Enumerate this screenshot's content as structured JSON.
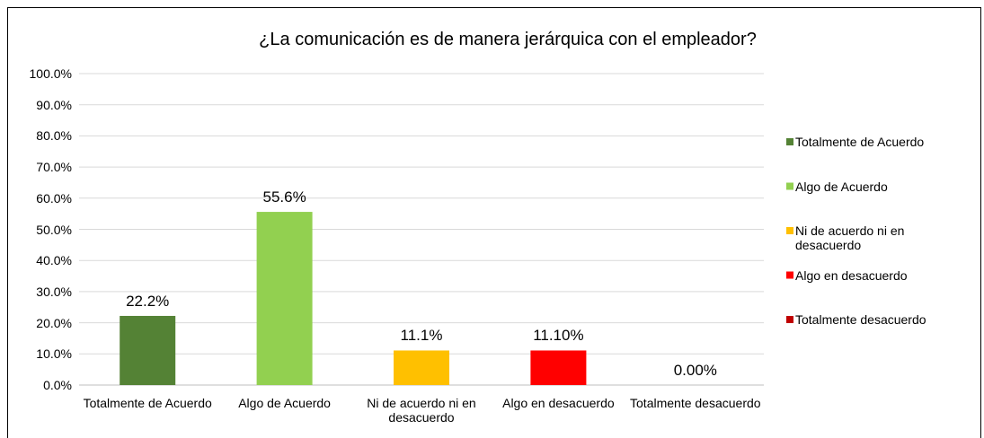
{
  "chart_data": {
    "type": "bar",
    "title": "¿La comunicación es de manera  jerárquica con el empleador?",
    "categories": [
      "Totalmente de Acuerdo",
      "Algo de Acuerdo",
      "Ni de acuerdo ni en desacuerdo",
      "Algo en desacuerdo",
      "Totalmente desacuerdo"
    ],
    "values": [
      22.2,
      55.6,
      11.1,
      11.1,
      0
    ],
    "value_labels": [
      "22.2%",
      "55.6%",
      "11.1%",
      "11.10%",
      "0.00%"
    ],
    "colors": [
      "#548235",
      "#92d050",
      "#ffc000",
      "#ff0000",
      "#c00000"
    ],
    "ylim": [
      0,
      100
    ],
    "yticks": [
      {
        "value": 0,
        "label": "0.0%"
      },
      {
        "value": 10,
        "label": "10.0%"
      },
      {
        "value": 20,
        "label": "20.0%"
      },
      {
        "value": 30,
        "label": "30.0%"
      },
      {
        "value": 40,
        "label": "40.0%"
      },
      {
        "value": 50,
        "label": "50.0%"
      },
      {
        "value": 60,
        "label": "60.0%"
      },
      {
        "value": 70,
        "label": "70.0%"
      },
      {
        "value": 80,
        "label": "80.0%"
      },
      {
        "value": 90,
        "label": "90.0%"
      },
      {
        "value": 100,
        "label": "100.0%"
      }
    ],
    "grid": true,
    "legend": "right"
  }
}
